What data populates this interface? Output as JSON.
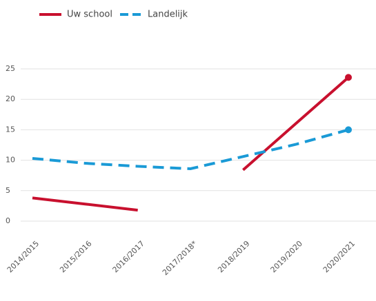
{
  "chart_data": {
    "type": "line",
    "categories": [
      "2014/2015",
      "2015/2016",
      "2016/2017",
      "2017/2018*",
      "2018/2019",
      "2019/2020",
      "2020/2021"
    ],
    "series": [
      {
        "name": "Uw school",
        "color": "#c8102e",
        "dash": "solid",
        "values": [
          3.8,
          2.8,
          1.8,
          null,
          8.4,
          16.0,
          23.6
        ]
      },
      {
        "name": "Landelijk",
        "color": "#1a9ad6",
        "dash": "dashed",
        "values": [
          10.3,
          9.5,
          9.0,
          8.6,
          10.6,
          12.6,
          15.0
        ]
      }
    ],
    "ylim": [
      0,
      25
    ],
    "yticks": [
      0,
      5,
      10,
      15,
      20,
      25
    ],
    "grid": true
  }
}
